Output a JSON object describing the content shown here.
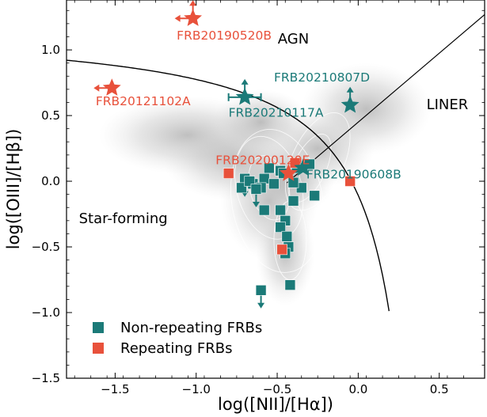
{
  "chart_data": {
    "type": "scatter",
    "title": "",
    "xlabel": "log([NII]/[Hα])",
    "ylabel": "log([OIII]/[Hβ])",
    "xlim": [
      -1.8,
      0.78
    ],
    "ylim": [
      -1.5,
      1.38
    ],
    "x_ticks": [
      -1.5,
      -1.0,
      -0.5,
      0.0,
      0.5
    ],
    "x_tick_labels": [
      "−1.5",
      "−1.0",
      "−0.5",
      "0.0",
      "0.5"
    ],
    "y_ticks": [
      -1.5,
      -1.0,
      -0.5,
      0.0,
      0.5,
      1.0
    ],
    "y_tick_labels": [
      "−1.5",
      "−1.0",
      "−0.5",
      "0.0",
      "0.5",
      "1.0"
    ],
    "grid": false,
    "legend_placement": "bottom-left",
    "region_labels": [
      {
        "text": "AGN",
        "x": -0.4,
        "y": 1.05
      },
      {
        "text": "LINER",
        "x": 0.55,
        "y": 0.55
      },
      {
        "text": "Star-forming",
        "x": -1.45,
        "y": -0.32
      }
    ],
    "series": [
      {
        "name": "Non-repeating FRBs",
        "color": "#1b7a78",
        "marker": "square",
        "points": [
          {
            "x": -0.55,
            "y": 0.1
          },
          {
            "x": -0.48,
            "y": 0.08
          },
          {
            "x": -0.46,
            "y": 0.06
          },
          {
            "x": -0.38,
            "y": 0.1
          },
          {
            "x": -0.3,
            "y": 0.13
          },
          {
            "x": -0.27,
            "y": -0.11
          },
          {
            "x": -0.35,
            "y": -0.05
          },
          {
            "x": -0.4,
            "y": -0.01
          },
          {
            "x": -0.65,
            "y": -0.02
          },
          {
            "x": -0.58,
            "y": 0.02
          },
          {
            "x": -0.52,
            "y": -0.02
          },
          {
            "x": -0.6,
            "y": -0.05
          },
          {
            "x": -0.48,
            "y": -0.22
          },
          {
            "x": -0.4,
            "y": -0.15
          },
          {
            "x": -0.45,
            "y": -0.3
          },
          {
            "x": -0.48,
            "y": -0.35
          },
          {
            "x": -0.44,
            "y": -0.42
          },
          {
            "x": -0.43,
            "y": -0.5
          },
          {
            "x": -0.45,
            "y": -0.55
          },
          {
            "x": -0.58,
            "y": -0.22
          },
          {
            "x": -0.42,
            "y": -0.79
          },
          {
            "x": -0.6,
            "y": -0.83,
            "upper_limit": true
          },
          {
            "x": -0.7,
            "y": 0.02,
            "upper_limit": true
          },
          {
            "x": -0.72,
            "y": -0.05
          },
          {
            "x": -0.67,
            "y": 0.0
          },
          {
            "x": -0.63,
            "y": -0.06,
            "upper_limit": true
          }
        ]
      },
      {
        "name": "Repeating FRBs",
        "color": "#e8513b",
        "marker": "square",
        "points": [
          {
            "x": -0.8,
            "y": 0.06
          },
          {
            "x": -0.39,
            "y": 0.14
          },
          {
            "x": -0.05,
            "y": 0.0
          },
          {
            "x": -0.47,
            "y": -0.52
          }
        ]
      }
    ],
    "star_markers": [
      {
        "label": "FRB20190520B",
        "x": -1.02,
        "y": 1.24,
        "color": "#e8513b",
        "arrows": [
          "up",
          "left"
        ]
      },
      {
        "label": "FRB20121102A",
        "x": -1.52,
        "y": 0.71,
        "color": "#e8513b",
        "arrows": [
          "left"
        ]
      },
      {
        "label": "FRB20210117A",
        "x": -0.7,
        "y": 0.64,
        "color": "#1b7a78",
        "arrows": [
          "up"
        ],
        "xerr": 0.1
      },
      {
        "label": "FRB20210807D",
        "x": -0.05,
        "y": 0.58,
        "color": "#1b7a78",
        "arrows": [
          "up"
        ]
      },
      {
        "label": "FRB20200120E",
        "x": -0.43,
        "y": 0.06,
        "color": "#e8513b",
        "arrows": []
      },
      {
        "label": "FRB20190608B",
        "x": -0.34,
        "y": 0.1,
        "color": "#1b7a78",
        "arrows": []
      }
    ],
    "curves": [
      {
        "name": "kewley-2001",
        "description": "0.61/(x-0.47)+1.19 for x<0.47"
      },
      {
        "name": "schawinski-2007",
        "description": "1.05x+0.45 for x>-0.44"
      }
    ]
  }
}
